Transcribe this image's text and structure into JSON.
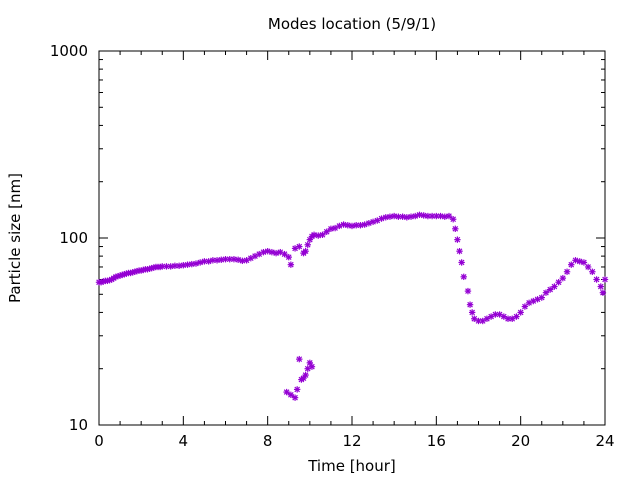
{
  "chart_data": {
    "type": "scatter",
    "title": "Modes location (5/9/1)",
    "xlabel": "Time [hour]",
    "ylabel": "Particle size [nm]",
    "xlim": [
      0,
      24
    ],
    "ylim": [
      10,
      1000
    ],
    "yscale": "log",
    "grid": false,
    "legend": "none",
    "marker": "asterisk",
    "color": "#9400d3",
    "xticks": [
      0,
      4,
      8,
      12,
      16,
      20,
      24
    ],
    "xtick_labels": [
      "0",
      "4",
      "8",
      "12",
      "16",
      "20",
      "24"
    ],
    "yticks": [
      10,
      100,
      1000
    ],
    "ytick_labels": [
      "10",
      "100",
      "1000"
    ],
    "series": [
      {
        "points": [
          [
            0.0,
            58
          ],
          [
            0.1,
            58
          ],
          [
            0.2,
            58.5
          ],
          [
            0.3,
            59
          ],
          [
            0.4,
            59
          ],
          [
            0.5,
            59.5
          ],
          [
            0.6,
            60
          ],
          [
            0.7,
            61
          ],
          [
            0.8,
            62
          ],
          [
            0.9,
            62.5
          ],
          [
            1.0,
            63
          ],
          [
            1.1,
            63.5
          ],
          [
            1.2,
            64
          ],
          [
            1.3,
            64.5
          ],
          [
            1.4,
            65
          ],
          [
            1.5,
            65
          ],
          [
            1.6,
            65.5
          ],
          [
            1.7,
            66
          ],
          [
            1.8,
            66.5
          ],
          [
            1.9,
            67
          ],
          [
            2.0,
            67
          ],
          [
            2.1,
            67.5
          ],
          [
            2.2,
            68
          ],
          [
            2.3,
            68
          ],
          [
            2.4,
            68.5
          ],
          [
            2.5,
            69
          ],
          [
            2.6,
            69.5
          ],
          [
            2.7,
            70
          ],
          [
            2.8,
            70
          ],
          [
            2.9,
            70
          ],
          [
            3.0,
            70.5
          ],
          [
            3.2,
            70.5
          ],
          [
            3.4,
            70.5
          ],
          [
            3.6,
            71
          ],
          [
            3.8,
            71
          ],
          [
            4.0,
            71.5
          ],
          [
            4.2,
            72
          ],
          [
            4.4,
            72.5
          ],
          [
            4.6,
            73
          ],
          [
            4.8,
            74
          ],
          [
            5.0,
            75
          ],
          [
            5.2,
            75
          ],
          [
            5.4,
            76
          ],
          [
            5.6,
            76
          ],
          [
            5.8,
            76.5
          ],
          [
            6.0,
            77
          ],
          [
            6.2,
            77
          ],
          [
            6.4,
            77
          ],
          [
            6.6,
            76.5
          ],
          [
            6.8,
            75.5
          ],
          [
            7.0,
            76
          ],
          [
            7.2,
            78
          ],
          [
            7.4,
            80
          ],
          [
            7.6,
            82
          ],
          [
            7.8,
            84
          ],
          [
            8.0,
            85
          ],
          [
            8.2,
            84
          ],
          [
            8.4,
            83
          ],
          [
            8.6,
            84
          ],
          [
            8.8,
            82
          ],
          [
            9.0,
            79
          ],
          [
            9.1,
            72
          ],
          [
            9.3,
            88
          ],
          [
            9.5,
            90
          ],
          [
            9.7,
            83
          ],
          [
            9.8,
            85
          ],
          [
            9.9,
            92
          ],
          [
            10.0,
            98
          ],
          [
            10.1,
            102
          ],
          [
            10.2,
            104
          ],
          [
            10.4,
            103
          ],
          [
            10.6,
            104
          ],
          [
            10.8,
            108
          ],
          [
            11.0,
            112
          ],
          [
            11.2,
            113
          ],
          [
            11.4,
            116
          ],
          [
            11.6,
            118
          ],
          [
            11.8,
            117
          ],
          [
            12.0,
            116
          ],
          [
            12.2,
            117
          ],
          [
            12.4,
            117
          ],
          [
            12.6,
            118
          ],
          [
            12.8,
            120
          ],
          [
            13.0,
            122
          ],
          [
            13.2,
            124
          ],
          [
            13.4,
            127
          ],
          [
            13.6,
            129
          ],
          [
            13.8,
            130
          ],
          [
            14.0,
            131
          ],
          [
            14.2,
            130
          ],
          [
            14.4,
            130
          ],
          [
            14.6,
            129
          ],
          [
            14.8,
            130
          ],
          [
            15.0,
            131
          ],
          [
            15.2,
            133
          ],
          [
            15.4,
            132
          ],
          [
            15.6,
            131
          ],
          [
            15.8,
            131
          ],
          [
            16.0,
            131
          ],
          [
            16.2,
            131
          ],
          [
            16.4,
            130
          ],
          [
            16.6,
            131
          ],
          [
            16.8,
            126
          ],
          [
            16.9,
            112
          ],
          [
            17.0,
            98
          ],
          [
            17.1,
            85
          ],
          [
            17.2,
            74
          ],
          [
            17.3,
            62
          ],
          [
            17.5,
            52
          ],
          [
            17.6,
            44
          ],
          [
            17.7,
            40
          ],
          [
            17.8,
            37
          ],
          [
            18.0,
            36
          ],
          [
            18.2,
            36
          ],
          [
            18.4,
            37
          ],
          [
            18.6,
            38
          ],
          [
            18.8,
            39
          ],
          [
            19.0,
            39
          ],
          [
            19.2,
            38
          ],
          [
            19.4,
            37
          ],
          [
            19.6,
            37
          ],
          [
            19.8,
            38
          ],
          [
            20.0,
            40
          ],
          [
            20.2,
            43
          ],
          [
            20.4,
            45
          ],
          [
            20.6,
            46
          ],
          [
            20.8,
            47
          ],
          [
            21.0,
            48
          ],
          [
            21.2,
            51
          ],
          [
            21.4,
            53
          ],
          [
            21.6,
            55
          ],
          [
            21.8,
            58
          ],
          [
            22.0,
            61
          ],
          [
            22.2,
            66
          ],
          [
            22.4,
            72
          ],
          [
            22.6,
            76
          ],
          [
            22.8,
            75
          ],
          [
            23.0,
            74
          ],
          [
            23.2,
            70
          ],
          [
            23.4,
            66
          ],
          [
            23.6,
            60
          ],
          [
            23.8,
            55
          ],
          [
            23.9,
            51
          ],
          [
            24.0,
            60
          ]
        ]
      },
      {
        "points": [
          [
            8.9,
            15
          ],
          [
            9.1,
            14.5
          ],
          [
            9.3,
            14
          ],
          [
            9.4,
            15.5
          ],
          [
            9.5,
            22.5
          ],
          [
            9.6,
            17.5
          ],
          [
            9.7,
            17.8
          ],
          [
            9.8,
            18.5
          ],
          [
            9.9,
            20
          ],
          [
            10.0,
            21.5
          ],
          [
            10.1,
            20.5
          ]
        ]
      }
    ]
  }
}
